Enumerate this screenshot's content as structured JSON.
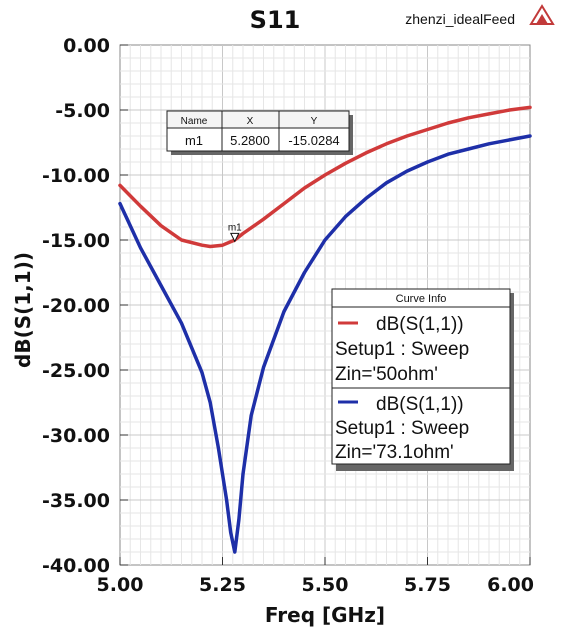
{
  "chart_data": {
    "type": "line",
    "title": "S11",
    "project": "zhenzi_idealFeed",
    "xlabel": "Freq [GHz]",
    "ylabel": "dB(S(1,1))",
    "xlim": [
      5.0,
      6.0
    ],
    "ylim": [
      -40.0,
      0.0
    ],
    "x_ticks": [
      "5.00",
      "5.25",
      "5.50",
      "5.75",
      "6.00"
    ],
    "y_ticks": [
      "0.00",
      "-5.00",
      "-10.00",
      "-15.00",
      "-20.00",
      "-25.00",
      "-30.00",
      "-35.00",
      "-40.00"
    ],
    "grid": true,
    "legend_position": "right",
    "series": [
      {
        "name": "dB(S(1,1))",
        "setup": "Setup1 : Sweep",
        "param": "Zin='50ohm'",
        "color": "#d03a3a",
        "x": [
          5.0,
          5.05,
          5.1,
          5.15,
          5.2,
          5.22,
          5.25,
          5.28,
          5.3,
          5.35,
          5.4,
          5.45,
          5.5,
          5.55,
          5.6,
          5.65,
          5.7,
          5.75,
          5.8,
          5.85,
          5.9,
          5.95,
          6.0
        ],
        "y": [
          -10.8,
          -12.4,
          -13.9,
          -15.0,
          -15.4,
          -15.5,
          -15.4,
          -15.0,
          -14.5,
          -13.4,
          -12.2,
          -11.0,
          -10.0,
          -9.1,
          -8.3,
          -7.6,
          -7.0,
          -6.5,
          -6.0,
          -5.6,
          -5.3,
          -5.0,
          -4.8
        ]
      },
      {
        "name": "dB(S(1,1))",
        "setup": "Setup1 : Sweep",
        "param": "Zin='73.1ohm'",
        "color": "#1e2fa8",
        "x": [
          5.0,
          5.05,
          5.1,
          5.15,
          5.2,
          5.22,
          5.24,
          5.26,
          5.27,
          5.28,
          5.29,
          5.3,
          5.32,
          5.35,
          5.4,
          5.45,
          5.5,
          5.55,
          5.6,
          5.65,
          5.7,
          5.75,
          5.8,
          5.85,
          5.9,
          5.95,
          6.0
        ],
        "y": [
          -12.2,
          -15.6,
          -18.5,
          -21.4,
          -25.2,
          -27.5,
          -31.0,
          -35.0,
          -37.5,
          -39.0,
          -36.5,
          -33.0,
          -28.5,
          -24.8,
          -20.5,
          -17.5,
          -15.0,
          -13.2,
          -11.8,
          -10.6,
          -9.7,
          -9.0,
          -8.4,
          -8.0,
          -7.6,
          -7.3,
          -7.0
        ]
      }
    ],
    "marker": {
      "name": "m1",
      "x": 5.28,
      "y": -15.0284,
      "table_headers": [
        "Name",
        "X",
        "Y"
      ],
      "table_values": [
        "m1",
        "5.2800",
        "-15.0284"
      ]
    },
    "legend_title": "Curve Info"
  }
}
